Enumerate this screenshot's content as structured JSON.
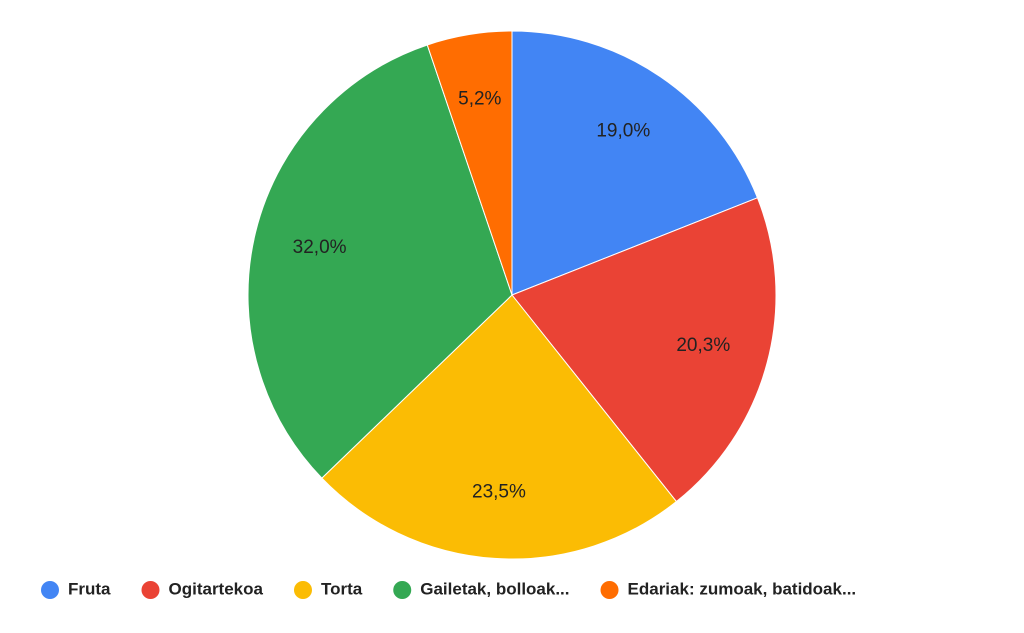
{
  "chart_data": {
    "type": "pie",
    "categories": [
      "Fruta",
      "Ogitartekoa",
      "Torta",
      "Gailetak, bolloak...",
      "Edariak: zumoak, batidoak..."
    ],
    "values": [
      19.0,
      20.3,
      23.5,
      32.0,
      5.2
    ],
    "value_labels": [
      "19,0%",
      "20,3%",
      "23,5%",
      "32,0%",
      "5,2%"
    ],
    "colors": [
      "#4285f4",
      "#ea4335",
      "#fbbc04",
      "#34a853",
      "#ff6d01"
    ],
    "legend": "bottom"
  }
}
